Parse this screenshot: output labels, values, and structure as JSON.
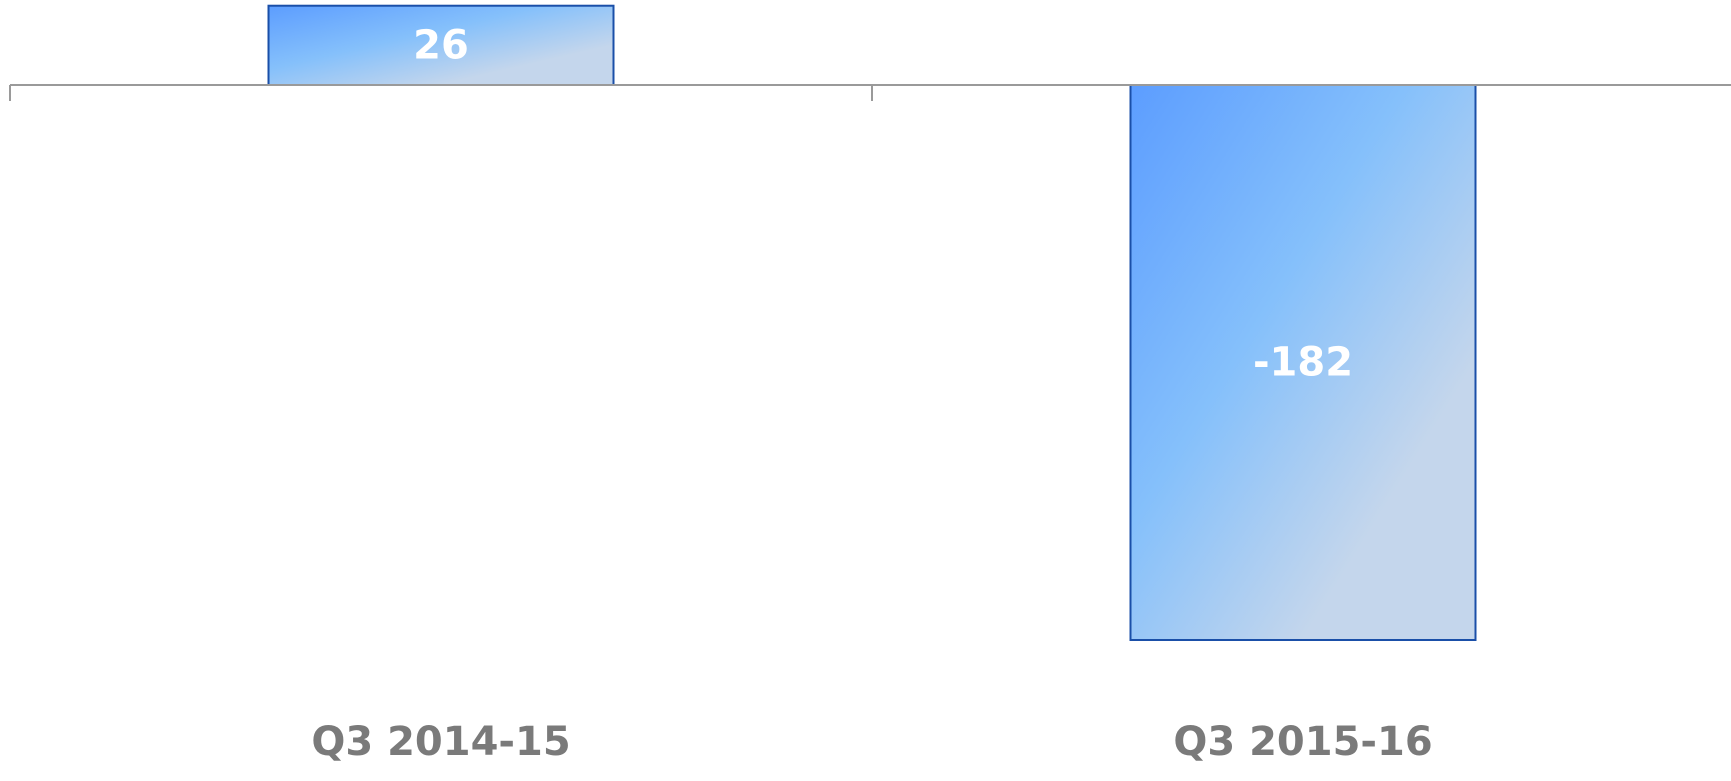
{
  "chart_data": {
    "type": "bar",
    "categories": [
      "Q3 2014-15",
      "Q3 2015-16"
    ],
    "values": [
      26,
      -182
    ],
    "data_labels": [
      "26",
      "-182"
    ],
    "title": "",
    "xlabel": "",
    "ylabel": "",
    "ylim": [
      -182,
      26
    ],
    "grid": false,
    "legend": "none",
    "colors": {
      "bar_gradient_start": "#5c9dff",
      "bar_gradient_mid": "#85c0fb",
      "bar_gradient_end": "#c4d6ec",
      "bar_border": "#1a4fa8",
      "axis": "#9a9a9a",
      "category_text": "#7a7a7a",
      "value_text": "#ffffff"
    }
  }
}
